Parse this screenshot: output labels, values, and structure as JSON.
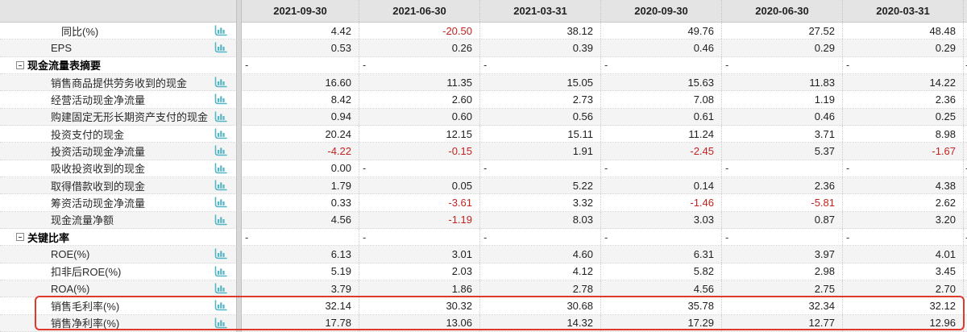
{
  "colors": {
    "icon_teal": "#54b6c5",
    "negative_value": "#c22320",
    "highlight_border": "#e0392c",
    "header_bg": "#e4e4e4",
    "row_stripe": "#f4f4f4"
  },
  "table": {
    "columns": [
      "2021-09-30",
      "2021-06-30",
      "2021-03-31",
      "2020-09-30",
      "2020-06-30",
      "2020-03-31"
    ],
    "rows": [
      {
        "label": "同比(%)",
        "type": "sub",
        "values": [
          "4.42",
          "-20.50",
          "38.12",
          "49.76",
          "27.52",
          "48.48"
        ],
        "sliver": ""
      },
      {
        "label": "EPS",
        "type": "item",
        "values": [
          "0.53",
          "0.26",
          "0.39",
          "0.46",
          "0.29",
          "0.29"
        ],
        "sliver": ""
      },
      {
        "label": "现金流量表摘要",
        "type": "section",
        "values": [
          "-",
          "-",
          "-",
          "-",
          "-",
          "-"
        ],
        "sliver": "-"
      },
      {
        "label": "销售商品提供劳务收到的现金",
        "type": "item",
        "values": [
          "16.60",
          "11.35",
          "15.05",
          "15.63",
          "11.83",
          "14.22"
        ],
        "sliver": ""
      },
      {
        "label": "经营活动现金净流量",
        "type": "item",
        "values": [
          "8.42",
          "2.60",
          "2.73",
          "7.08",
          "1.19",
          "2.36"
        ],
        "sliver": ""
      },
      {
        "label": "购建固定无形长期资产支付的现金",
        "type": "item",
        "values": [
          "0.94",
          "0.60",
          "0.56",
          "0.61",
          "0.46",
          "0.25"
        ],
        "sliver": ""
      },
      {
        "label": "投资支付的现金",
        "type": "item",
        "values": [
          "20.24",
          "12.15",
          "15.11",
          "11.24",
          "3.71",
          "8.98"
        ],
        "sliver": ""
      },
      {
        "label": "投资活动现金净流量",
        "type": "item",
        "values": [
          "-4.22",
          "-0.15",
          "1.91",
          "-2.45",
          "5.37",
          "-1.67"
        ],
        "sliver": ""
      },
      {
        "label": "吸收投资收到的现金",
        "type": "item",
        "values": [
          "0.00",
          "-",
          "-",
          "-",
          "-",
          "-"
        ],
        "sliver": "-"
      },
      {
        "label": "取得借款收到的现金",
        "type": "item",
        "values": [
          "1.79",
          "0.05",
          "5.22",
          "0.14",
          "2.36",
          "4.38"
        ],
        "sliver": ""
      },
      {
        "label": "筹资活动现金净流量",
        "type": "item",
        "values": [
          "0.33",
          "-3.61",
          "3.32",
          "-1.46",
          "-5.81",
          "2.62"
        ],
        "sliver": ""
      },
      {
        "label": "现金流量净额",
        "type": "item",
        "values": [
          "4.56",
          "-1.19",
          "8.03",
          "3.03",
          "0.87",
          "3.20"
        ],
        "sliver": ""
      },
      {
        "label": "关键比率",
        "type": "section",
        "values": [
          "-",
          "-",
          "-",
          "-",
          "-",
          "-"
        ],
        "sliver": "-"
      },
      {
        "label": "ROE(%)",
        "type": "item",
        "values": [
          "6.13",
          "3.01",
          "4.60",
          "6.31",
          "3.97",
          "4.01"
        ],
        "sliver": ""
      },
      {
        "label": "扣非后ROE(%)",
        "type": "item",
        "values": [
          "5.19",
          "2.03",
          "4.12",
          "5.82",
          "2.98",
          "3.45"
        ],
        "sliver": ""
      },
      {
        "label": "ROA(%)",
        "type": "item",
        "values": [
          "3.79",
          "1.86",
          "2.78",
          "4.56",
          "2.75",
          "2.70"
        ],
        "sliver": ""
      },
      {
        "label": "销售毛利率(%)",
        "type": "item",
        "highlighted": true,
        "values": [
          "32.14",
          "30.32",
          "30.68",
          "35.78",
          "32.34",
          "32.12"
        ],
        "sliver": ""
      },
      {
        "label": "销售净利率(%)",
        "type": "item",
        "highlighted": true,
        "values": [
          "17.78",
          "13.06",
          "14.32",
          "17.29",
          "12.77",
          "12.96"
        ],
        "sliver": ""
      }
    ]
  }
}
